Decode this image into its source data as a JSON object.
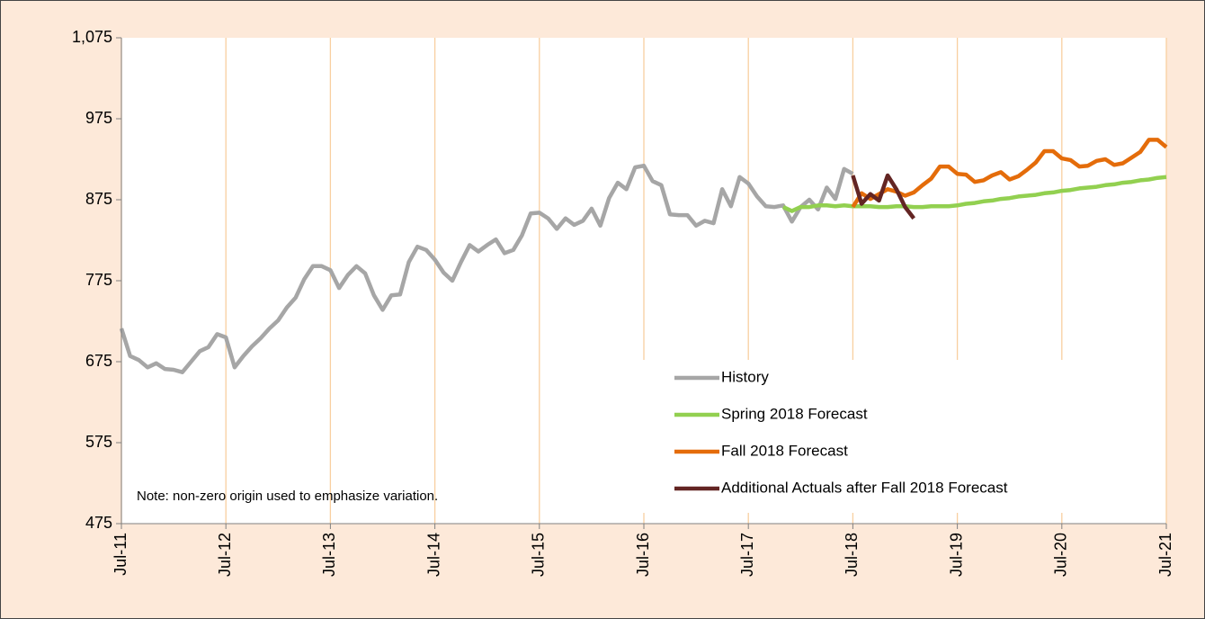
{
  "chart_data": {
    "type": "line",
    "categories": [
      "Jul-11",
      null,
      null,
      null,
      null,
      null,
      null,
      null,
      null,
      null,
      null,
      null,
      "Jul-12",
      null,
      null,
      null,
      null,
      null,
      null,
      null,
      null,
      null,
      null,
      null,
      "Jul-13",
      null,
      null,
      null,
      null,
      null,
      null,
      null,
      null,
      null,
      null,
      null,
      "Jul-14",
      null,
      null,
      null,
      null,
      null,
      null,
      null,
      null,
      null,
      null,
      null,
      "Jul-15",
      null,
      null,
      null,
      null,
      null,
      null,
      null,
      null,
      null,
      null,
      null,
      "Jul-16",
      null,
      null,
      null,
      null,
      null,
      null,
      null,
      null,
      null,
      null,
      null,
      "Jul-17",
      null,
      null,
      null,
      null,
      null,
      null,
      null,
      null,
      null,
      null,
      null,
      "Jul-18",
      null,
      null,
      null,
      null,
      null,
      null,
      null,
      null,
      null,
      null,
      null,
      "Jul-19",
      null,
      null,
      null,
      null,
      null,
      null,
      null,
      null,
      null,
      null,
      null,
      "Jul-20",
      null,
      null,
      null,
      null,
      null,
      null,
      null,
      null,
      null,
      null,
      null,
      "Jul-21"
    ],
    "series": [
      {
        "name": "History",
        "color": "#a6a6a6",
        "values": [
          716,
          682,
          677,
          668,
          673,
          666,
          665,
          662,
          675,
          688,
          693,
          709,
          705,
          668,
          682,
          694,
          704,
          716,
          726,
          742,
          754,
          777,
          793,
          793,
          788,
          766,
          782,
          793,
          784,
          757,
          739,
          757,
          758,
          798,
          817,
          813,
          801,
          785,
          775,
          798,
          819,
          811,
          819,
          826,
          809,
          813,
          831,
          858,
          859,
          852,
          839,
          852,
          844,
          849,
          864,
          843,
          877,
          896,
          888,
          915,
          917,
          898,
          893,
          857,
          856,
          856,
          843,
          849,
          846,
          888,
          867,
          903,
          895,
          879,
          867,
          866,
          868,
          848,
          866,
          875,
          863,
          890,
          876,
          913,
          907,
          null,
          null,
          null,
          null,
          null,
          null,
          null,
          null,
          null,
          null,
          null,
          null,
          null,
          null,
          null,
          null,
          null,
          null,
          null,
          null,
          null,
          null,
          null,
          null,
          null,
          null,
          null,
          null,
          null,
          null,
          null,
          null,
          null,
          null,
          null,
          null
        ]
      },
      {
        "name": "Spring 2018 Forecast",
        "color": "#92d050",
        "values": [
          null,
          null,
          null,
          null,
          null,
          null,
          null,
          null,
          null,
          null,
          null,
          null,
          null,
          null,
          null,
          null,
          null,
          null,
          null,
          null,
          null,
          null,
          null,
          null,
          null,
          null,
          null,
          null,
          null,
          null,
          null,
          null,
          null,
          null,
          null,
          null,
          null,
          null,
          null,
          null,
          null,
          null,
          null,
          null,
          null,
          null,
          null,
          null,
          null,
          null,
          null,
          null,
          null,
          null,
          null,
          null,
          null,
          null,
          null,
          null,
          null,
          null,
          null,
          null,
          null,
          null,
          null,
          null,
          null,
          null,
          null,
          null,
          null,
          null,
          null,
          null,
          866,
          861,
          866,
          866,
          868,
          868,
          867,
          868,
          867,
          867,
          867,
          866,
          866,
          867,
          867,
          866,
          866,
          867,
          867,
          867,
          868,
          870,
          871,
          873,
          874,
          876,
          877,
          879,
          880,
          881,
          883,
          884,
          886,
          887,
          889,
          890,
          891,
          893,
          894,
          896,
          897,
          899,
          900,
          902,
          903
        ]
      },
      {
        "name": "Fall 2018 Forecast",
        "color": "#e46c0a",
        "values": [
          null,
          null,
          null,
          null,
          null,
          null,
          null,
          null,
          null,
          null,
          null,
          null,
          null,
          null,
          null,
          null,
          null,
          null,
          null,
          null,
          null,
          null,
          null,
          null,
          null,
          null,
          null,
          null,
          null,
          null,
          null,
          null,
          null,
          null,
          null,
          null,
          null,
          null,
          null,
          null,
          null,
          null,
          null,
          null,
          null,
          null,
          null,
          null,
          null,
          null,
          null,
          null,
          null,
          null,
          null,
          null,
          null,
          null,
          null,
          null,
          null,
          null,
          null,
          null,
          null,
          null,
          null,
          null,
          null,
          null,
          null,
          null,
          null,
          null,
          null,
          null,
          null,
          null,
          null,
          null,
          null,
          null,
          null,
          null,
          866,
          883,
          876,
          882,
          888,
          885,
          880,
          884,
          893,
          901,
          916,
          916,
          907,
          906,
          897,
          899,
          905,
          909,
          900,
          904,
          912,
          921,
          935,
          935,
          926,
          924,
          916,
          917,
          923,
          925,
          918,
          920,
          927,
          934,
          949,
          949,
          940
        ]
      },
      {
        "name": "Additional Actuals after Fall 2018 Forecast",
        "color": "#632523",
        "values": [
          null,
          null,
          null,
          null,
          null,
          null,
          null,
          null,
          null,
          null,
          null,
          null,
          null,
          null,
          null,
          null,
          null,
          null,
          null,
          null,
          null,
          null,
          null,
          null,
          null,
          null,
          null,
          null,
          null,
          null,
          null,
          null,
          null,
          null,
          null,
          null,
          null,
          null,
          null,
          null,
          null,
          null,
          null,
          null,
          null,
          null,
          null,
          null,
          null,
          null,
          null,
          null,
          null,
          null,
          null,
          null,
          null,
          null,
          null,
          null,
          null,
          null,
          null,
          null,
          null,
          null,
          null,
          null,
          null,
          null,
          null,
          null,
          null,
          null,
          null,
          null,
          null,
          null,
          null,
          null,
          null,
          null,
          null,
          null,
          905,
          870,
          882,
          874,
          905,
          888,
          866,
          852,
          null,
          null,
          null,
          null,
          null,
          null,
          null,
          null,
          null,
          null,
          null,
          null,
          null,
          null,
          null,
          null,
          null,
          null,
          null,
          null,
          null,
          null,
          null,
          null,
          null,
          null,
          null,
          null,
          null
        ]
      }
    ],
    "ylim": [
      475,
      1075
    ],
    "yticks": [
      475,
      575,
      675,
      775,
      875,
      975,
      {
        "value": 1075,
        "label": "1,075"
      }
    ],
    "grid": "vertical",
    "legend": "lower right",
    "note": "Note: non-zero origin used to emphasize variation."
  }
}
